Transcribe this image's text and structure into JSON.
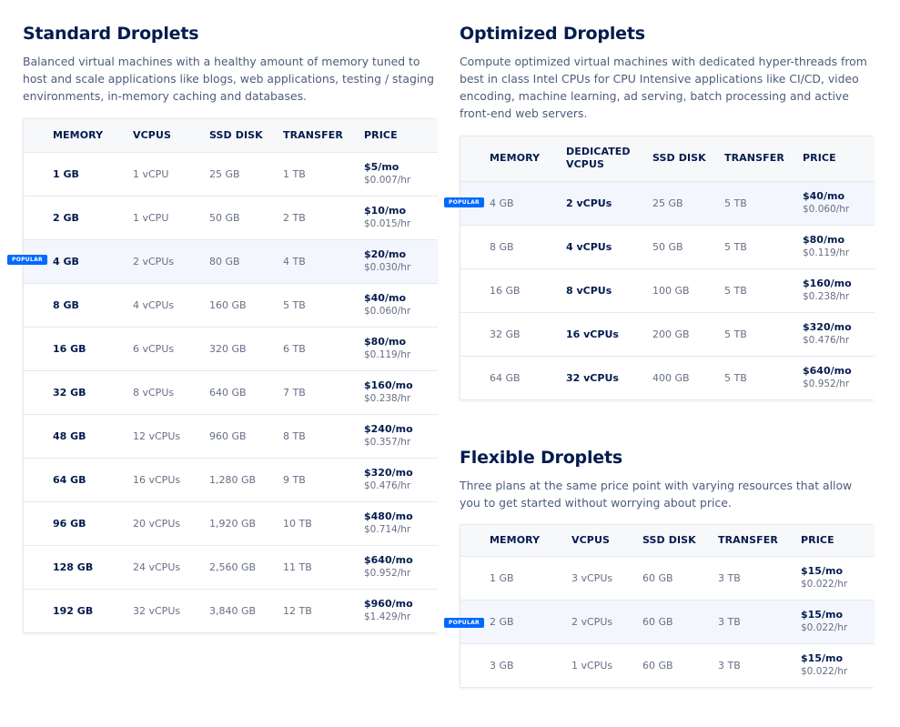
{
  "standard": {
    "title": "Standard Droplets",
    "description": "Balanced virtual machines with a healthy amount of memory tuned to host and scale applications like blogs, web applications, testing / staging environments, in-memory caching and databases.",
    "headers": [
      "MEMORY",
      "VCPUS",
      "SSD DISK",
      "TRANSFER",
      "PRICE"
    ],
    "rows": [
      {
        "memory": "1 GB",
        "vcpus": "1 vCPU",
        "disk": "25 GB",
        "transfer": "1 TB",
        "price_mo": "$5/mo",
        "price_hr": "$0.007/hr"
      },
      {
        "memory": "2 GB",
        "vcpus": "1 vCPU",
        "disk": "50 GB",
        "transfer": "2 TB",
        "price_mo": "$10/mo",
        "price_hr": "$0.015/hr"
      },
      {
        "memory": "4 GB",
        "vcpus": "2 vCPUs",
        "disk": "80 GB",
        "transfer": "4 TB",
        "price_mo": "$20/mo",
        "price_hr": "$0.030/hr"
      },
      {
        "memory": "8 GB",
        "vcpus": "4 vCPUs",
        "disk": "160 GB",
        "transfer": "5 TB",
        "price_mo": "$40/mo",
        "price_hr": "$0.060/hr"
      },
      {
        "memory": "16 GB",
        "vcpus": "6 vCPUs",
        "disk": "320 GB",
        "transfer": "6 TB",
        "price_mo": "$80/mo",
        "price_hr": "$0.119/hr"
      },
      {
        "memory": "32 GB",
        "vcpus": "8 vCPUs",
        "disk": "640 GB",
        "transfer": "7 TB",
        "price_mo": "$160/mo",
        "price_hr": "$0.238/hr"
      },
      {
        "memory": "48 GB",
        "vcpus": "12 vCPUs",
        "disk": "960 GB",
        "transfer": "8 TB",
        "price_mo": "$240/mo",
        "price_hr": "$0.357/hr"
      },
      {
        "memory": "64 GB",
        "vcpus": "16 vCPUs",
        "disk": "1,280 GB",
        "transfer": "9 TB",
        "price_mo": "$320/mo",
        "price_hr": "$0.476/hr"
      },
      {
        "memory": "96 GB",
        "vcpus": "20 vCPUs",
        "disk": "1,920 GB",
        "transfer": "10 TB",
        "price_mo": "$480/mo",
        "price_hr": "$0.714/hr"
      },
      {
        "memory": "128 GB",
        "vcpus": "24 vCPUs",
        "disk": "2,560 GB",
        "transfer": "11 TB",
        "price_mo": "$640/mo",
        "price_hr": "$0.952/hr"
      },
      {
        "memory": "192 GB",
        "vcpus": "32 vCPUs",
        "disk": "3,840 GB",
        "transfer": "12 TB",
        "price_mo": "$960/mo",
        "price_hr": "$1.429/hr"
      }
    ]
  },
  "optimized": {
    "title": "Optimized Droplets",
    "description": "Compute optimized virtual machines with dedicated hyper-threads from best in class Intel CPUs for CPU Intensive applications like CI/CD, video encoding, machine learning, ad serving, batch processing and active front-end web servers.",
    "headers": [
      "MEMORY",
      "DEDICATED VCPUS",
      "SSD DISK",
      "TRANSFER",
      "PRICE"
    ],
    "rows": [
      {
        "memory": "4 GB",
        "vcpus": "2 vCPUs",
        "disk": "25 GB",
        "transfer": "5 TB",
        "price_mo": "$40/mo",
        "price_hr": "$0.060/hr"
      },
      {
        "memory": "8 GB",
        "vcpus": "4 vCPUs",
        "disk": "50 GB",
        "transfer": "5 TB",
        "price_mo": "$80/mo",
        "price_hr": "$0.119/hr"
      },
      {
        "memory": "16 GB",
        "vcpus": "8 vCPUs",
        "disk": "100 GB",
        "transfer": "5 TB",
        "price_mo": "$160/mo",
        "price_hr": "$0.238/hr"
      },
      {
        "memory": "32 GB",
        "vcpus": "16 vCPUs",
        "disk": "200 GB",
        "transfer": "5 TB",
        "price_mo": "$320/mo",
        "price_hr": "$0.476/hr"
      },
      {
        "memory": "64 GB",
        "vcpus": "32 vCPUs",
        "disk": "400 GB",
        "transfer": "5 TB",
        "price_mo": "$640/mo",
        "price_hr": "$0.952/hr"
      }
    ]
  },
  "flexible": {
    "title": "Flexible Droplets",
    "description": "Three plans at the same price point with varying resources that allow you to get started without worrying about price.",
    "headers": [
      "MEMORY",
      "VCPUS",
      "SSD DISK",
      "TRANSFER",
      "PRICE"
    ],
    "rows": [
      {
        "memory": "1 GB",
        "vcpus": "3 vCPUs",
        "disk": "60 GB",
        "transfer": "3 TB",
        "price_mo": "$15/mo",
        "price_hr": "$0.022/hr"
      },
      {
        "memory": "2 GB",
        "vcpus": "2 vCPUs",
        "disk": "60 GB",
        "transfer": "3 TB",
        "price_mo": "$15/mo",
        "price_hr": "$0.022/hr"
      },
      {
        "memory": "3 GB",
        "vcpus": "1 vCPUs",
        "disk": "60 GB",
        "transfer": "3 TB",
        "price_mo": "$15/mo",
        "price_hr": "$0.022/hr"
      }
    ]
  },
  "badge_label": "POPULAR",
  "colors": {
    "accent": "#0069ff",
    "heading": "#031b4e",
    "muted": "#676f85",
    "popular_row": "#f3f6fc"
  }
}
